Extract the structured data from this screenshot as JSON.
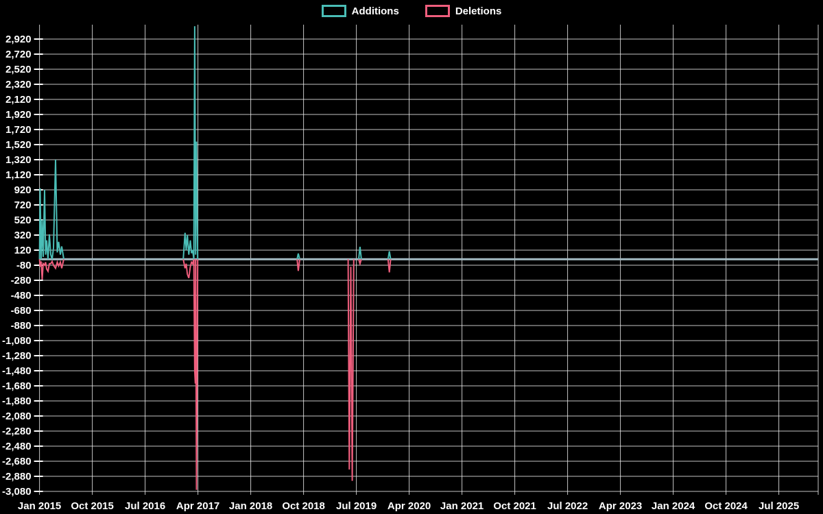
{
  "chart_data": {
    "type": "line",
    "title": "",
    "xlabel": "",
    "ylabel": "",
    "x_unit": "months since Jan 2015",
    "legend": [
      {
        "name": "Additions",
        "color": "#4abdb6"
      },
      {
        "name": "Deletions",
        "color": "#ef5e7d"
      }
    ],
    "legend_position": "top-center",
    "grid": true,
    "colors": {
      "background": "#000000",
      "grid": "#e8e8e8",
      "text": "#ffffff",
      "zero_line": "#a4bac3",
      "additions": "#4abdb6",
      "deletions": "#ef5e7d"
    },
    "y_axis": {
      "min": -3080,
      "max": 2920,
      "step": 200,
      "tick_labels": [
        "2,920",
        "2,720",
        "2,520",
        "2,320",
        "2,120",
        "1,920",
        "1,720",
        "1,520",
        "1,320",
        "1,120",
        "920",
        "720",
        "520",
        "320",
        "120",
        "-80",
        "-280",
        "-480",
        "-680",
        "-880",
        "-1,080",
        "-1,280",
        "-1,480",
        "-1,680",
        "-1,880",
        "-2,080",
        "-2,280",
        "-2,480",
        "-2,680",
        "-2,880",
        "-3,080"
      ]
    },
    "x_axis": {
      "tick_labels": [
        "Jan 2015",
        "Oct 2015",
        "Jul 2016",
        "Apr 2017",
        "Jan 2018",
        "Oct 2018",
        "Jul 2019",
        "Apr 2020",
        "Jan 2021",
        "Oct 2021",
        "Jul 2022",
        "Apr 2023",
        "Jan 2024",
        "Oct 2024",
        "Jul 2025"
      ],
      "months_between_ticks": 9,
      "domain_months": [
        0,
        132.7
      ]
    },
    "series": [
      {
        "name": "Additions",
        "color": "#4abdb6",
        "points": [
          [
            0,
            0
          ],
          [
            0.1,
            940
          ],
          [
            0.28,
            0
          ],
          [
            0.46,
            520
          ],
          [
            0.63,
            30
          ],
          [
            0.86,
            920
          ],
          [
            1.04,
            60
          ],
          [
            1.22,
            250
          ],
          [
            1.45,
            0
          ],
          [
            1.68,
            330
          ],
          [
            1.92,
            60
          ],
          [
            2.15,
            0
          ],
          [
            2.38,
            150
          ],
          [
            2.73,
            1320
          ],
          [
            3.03,
            90
          ],
          [
            3.26,
            230
          ],
          [
            3.55,
            60
          ],
          [
            3.79,
            170
          ],
          [
            4.14,
            0
          ],
          [
            24.5,
            0
          ],
          [
            24.8,
            350
          ],
          [
            25.0,
            120
          ],
          [
            25.2,
            320
          ],
          [
            25.45,
            60
          ],
          [
            25.7,
            250
          ],
          [
            25.9,
            80
          ],
          [
            26.1,
            120
          ],
          [
            26.3,
            0
          ],
          [
            26.45,
            3090
          ],
          [
            26.6,
            60
          ],
          [
            26.75,
            1560
          ],
          [
            26.95,
            0
          ],
          [
            43.9,
            0
          ],
          [
            44.1,
            75
          ],
          [
            44.35,
            0
          ],
          [
            52.6,
            0
          ],
          [
            52.8,
            0
          ],
          [
            53.3,
            0
          ],
          [
            53.55,
            0
          ],
          [
            54.4,
            0
          ],
          [
            54.62,
            165
          ],
          [
            54.85,
            0
          ],
          [
            59.4,
            0
          ],
          [
            59.62,
            105
          ],
          [
            59.85,
            0
          ],
          [
            132.6,
            0
          ]
        ]
      },
      {
        "name": "Deletions",
        "color": "#ef5e7d",
        "points": [
          [
            0,
            0
          ],
          [
            0.1,
            -100
          ],
          [
            0.28,
            -30
          ],
          [
            0.46,
            -270
          ],
          [
            0.63,
            -60
          ],
          [
            0.86,
            -80
          ],
          [
            1.04,
            -40
          ],
          [
            1.22,
            -130
          ],
          [
            1.45,
            -160
          ],
          [
            1.68,
            -60
          ],
          [
            1.92,
            -60
          ],
          [
            2.15,
            -30
          ],
          [
            2.38,
            -80
          ],
          [
            2.73,
            -120
          ],
          [
            3.03,
            -40
          ],
          [
            3.26,
            -90
          ],
          [
            3.55,
            -40
          ],
          [
            3.79,
            -120
          ],
          [
            4.14,
            0
          ],
          [
            24.5,
            0
          ],
          [
            24.8,
            -120
          ],
          [
            25.0,
            -60
          ],
          [
            25.2,
            -200
          ],
          [
            25.45,
            -250
          ],
          [
            25.7,
            -100
          ],
          [
            25.9,
            -40
          ],
          [
            26.1,
            -60
          ],
          [
            26.3,
            0
          ],
          [
            26.45,
            -1480
          ],
          [
            26.55,
            -1650
          ],
          [
            26.6,
            0
          ],
          [
            26.75,
            -3060
          ],
          [
            26.95,
            0
          ],
          [
            43.9,
            0
          ],
          [
            44.1,
            -155
          ],
          [
            44.35,
            0
          ],
          [
            52.6,
            0
          ],
          [
            52.8,
            -2790
          ],
          [
            53.05,
            -100
          ],
          [
            53.3,
            -2940
          ],
          [
            53.55,
            0
          ],
          [
            54.4,
            0
          ],
          [
            54.62,
            -60
          ],
          [
            54.85,
            0
          ],
          [
            59.4,
            0
          ],
          [
            59.62,
            -175
          ],
          [
            59.85,
            0
          ],
          [
            132.6,
            0
          ]
        ]
      }
    ]
  }
}
